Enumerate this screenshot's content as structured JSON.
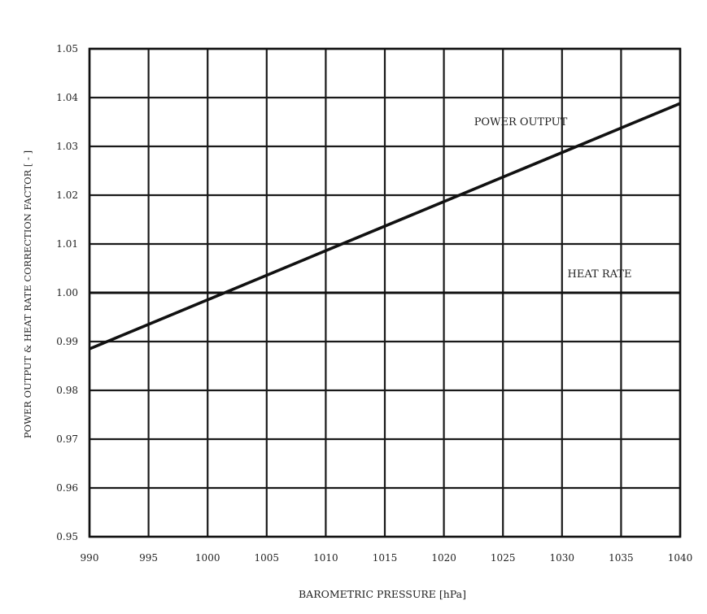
{
  "chart_data": {
    "type": "line",
    "title": "",
    "xlabel": "BAROMETRIC PRESSURE [hPa]",
    "ylabel": "POWER OUTPUT & HEAT RATE CORRECTION FACTOR [ - ]",
    "xlim": [
      990,
      1040
    ],
    "ylim": [
      0.95,
      1.05
    ],
    "grid": true,
    "x_ticks": [
      990,
      995,
      1000,
      1005,
      1010,
      1015,
      1020,
      1025,
      1030,
      1035,
      1040
    ],
    "y_ticks": [
      0.95,
      0.96,
      0.97,
      0.98,
      0.99,
      1.0,
      1.01,
      1.02,
      1.03,
      1.04,
      1.05
    ],
    "x_tick_labels": [
      "990",
      "995",
      "1000",
      "1005",
      "1010",
      "1015",
      "1020",
      "1025",
      "1030",
      "1035",
      "1040"
    ],
    "y_tick_labels": [
      "0.95",
      "0.96",
      "0.97",
      "0.98",
      "0.99",
      "1.00",
      "1.01",
      "1.02",
      "1.03",
      "1.04",
      "1.05"
    ],
    "series": [
      {
        "name": "POWER OUTPUT",
        "x": [
          990,
          1040
        ],
        "y": [
          0.9885,
          1.0388
        ],
        "color": "#111111"
      },
      {
        "name": "HEAT RATE",
        "x": [
          990,
          1040
        ],
        "y": [
          1.0,
          1.0
        ],
        "color": "#111111"
      }
    ],
    "annotations": [
      {
        "text": "POWER OUTPUT",
        "series": "POWER OUTPUT"
      },
      {
        "text": "HEAT RATE",
        "series": "HEAT RATE"
      }
    ]
  }
}
